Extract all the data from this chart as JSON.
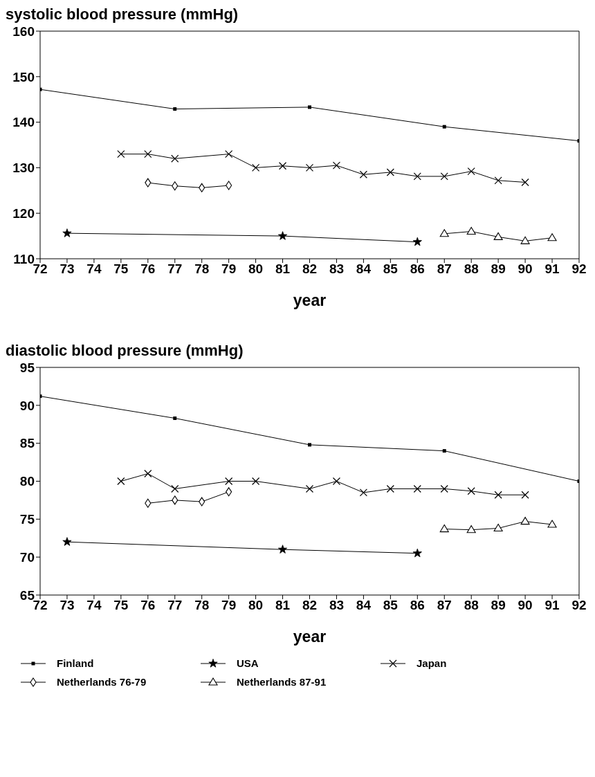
{
  "chart_data": [
    {
      "type": "line",
      "title": "systolic blood pressure (mmHg)",
      "xlabel": "year",
      "xlim": [
        72,
        92
      ],
      "xticks": [
        72,
        73,
        74,
        75,
        76,
        77,
        78,
        79,
        80,
        81,
        82,
        83,
        84,
        85,
        86,
        87,
        88,
        89,
        90,
        91,
        92
      ],
      "ylim": [
        110,
        160
      ],
      "yticks": [
        110,
        120,
        130,
        140,
        150,
        160
      ],
      "grid": false,
      "legend": false,
      "line_style": "solid",
      "series": [
        {
          "color": "#000000",
          "marker": "square",
          "x": [
            72,
            77,
            82,
            87,
            92
          ],
          "values": [
            147.2,
            142.9,
            143.3,
            139.0,
            135.9
          ]
        },
        {
          "color": "#000000",
          "marker": "star",
          "x": [
            73,
            81,
            86
          ],
          "values": [
            115.6,
            115.0,
            113.7
          ]
        },
        {
          "color": "#000000",
          "marker": "cross",
          "x": [
            75,
            76,
            77,
            79,
            80,
            81,
            82,
            83,
            84,
            85,
            86,
            87,
            88,
            89,
            90
          ],
          "values": [
            133.0,
            133.0,
            132.0,
            133.0,
            130.0,
            130.4,
            130.0,
            130.5,
            128.5,
            129.0,
            128.1,
            128.1,
            129.2,
            127.2,
            126.8
          ]
        },
        {
          "color": "#000000",
          "marker": "diamond",
          "x": [
            76,
            77,
            78,
            79
          ],
          "values": [
            126.7,
            126.0,
            125.6,
            126.1
          ]
        },
        {
          "color": "#000000",
          "marker": "triangle",
          "x": [
            87,
            88,
            89,
            90,
            91
          ],
          "values": [
            115.5,
            116.0,
            114.8,
            113.9,
            114.6
          ]
        }
      ]
    },
    {
      "type": "line",
      "title": "diastolic blood pressure (mmHg)",
      "xlabel": "year",
      "xlim": [
        72,
        92
      ],
      "xticks": [
        72,
        73,
        74,
        75,
        76,
        77,
        78,
        79,
        80,
        81,
        82,
        83,
        84,
        85,
        86,
        87,
        88,
        89,
        90,
        91,
        92
      ],
      "ylim": [
        65,
        95
      ],
      "yticks": [
        65,
        70,
        75,
        80,
        85,
        90,
        95
      ],
      "grid": false,
      "legend": "bottom",
      "line_style": "solid",
      "series": [
        {
          "name": "Finland",
          "color": "#000000",
          "marker": "square",
          "x": [
            72,
            77,
            82,
            87,
            92
          ],
          "values": [
            91.2,
            88.3,
            84.8,
            84.0,
            80.0
          ]
        },
        {
          "name": "USA",
          "color": "#000000",
          "marker": "star",
          "x": [
            73,
            81,
            86
          ],
          "values": [
            72.0,
            71.0,
            70.5
          ]
        },
        {
          "name": "Japan",
          "color": "#000000",
          "marker": "cross",
          "x": [
            75,
            76,
            77,
            79,
            80,
            82,
            83,
            84,
            85,
            86,
            87,
            88,
            89,
            90
          ],
          "values": [
            80.0,
            81.0,
            79.0,
            80.0,
            80.0,
            79.0,
            80.0,
            78.5,
            79.0,
            79.0,
            79.0,
            78.7,
            78.2,
            78.2
          ]
        },
        {
          "name": "Netherlands 76-79",
          "color": "#000000",
          "marker": "diamond",
          "x": [
            76,
            77,
            78,
            79
          ],
          "values": [
            77.1,
            77.5,
            77.3,
            78.6
          ]
        },
        {
          "name": "Netherlands 87-91",
          "color": "#000000",
          "marker": "triangle",
          "x": [
            87,
            88,
            89,
            90,
            91
          ],
          "values": [
            73.7,
            73.6,
            73.8,
            74.7,
            74.3
          ]
        }
      ]
    }
  ]
}
